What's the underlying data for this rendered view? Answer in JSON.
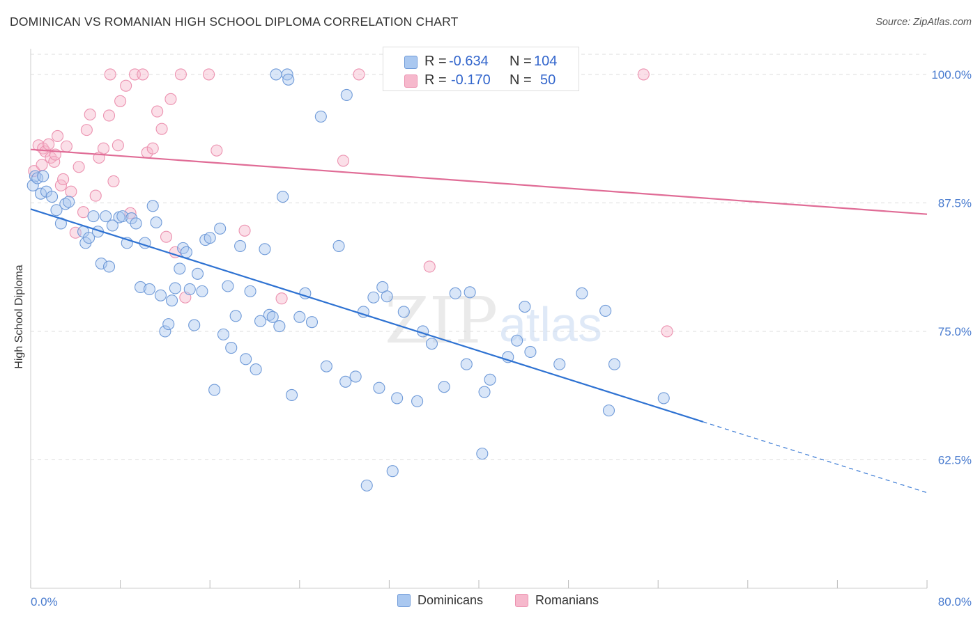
{
  "title": "DOMINICAN VS ROMANIAN HIGH SCHOOL DIPLOMA CORRELATION CHART",
  "source": "Source: ZipAtlas.com",
  "watermark": {
    "part1": "ZIP",
    "part2": "atlas"
  },
  "legend_top": {
    "rows": [
      {
        "r_label": "R = ",
        "r_value": "-0.634",
        "n_label": "N = ",
        "n_value": "104"
      },
      {
        "r_label": "R = ",
        "r_value": "-0.170",
        "n_label": "N = ",
        "n_value": "50"
      }
    ]
  },
  "legend_bottom": [
    "Dominicans",
    "Romanians"
  ],
  "colors": {
    "blue_fill": "#aac8f0",
    "blue_stroke": "#6f9ad8",
    "blue_line": "#2e72d2",
    "pink_fill": "#f6b8cc",
    "pink_stroke": "#ec92b0",
    "pink_line": "#e06c96",
    "tick_text": "#4a7ccf",
    "grid": "#dddddd"
  },
  "chart_data": {
    "type": "scatter",
    "title": "DOMINICAN VS ROMANIAN HIGH SCHOOL DIPLOMA CORRELATION CHART",
    "xlabel": "",
    "ylabel": "High School Diploma",
    "xlim": [
      0,
      80
    ],
    "ylim": [
      50,
      102.5
    ],
    "x_tick_labels": [
      "0.0%",
      "80.0%"
    ],
    "y_ticks": [
      62.5,
      75.0,
      87.5,
      100.0
    ],
    "y_tick_labels": [
      "62.5%",
      "75.0%",
      "87.5%",
      "100.0%"
    ],
    "grid": "horizontal dashed",
    "legend_position": "top-center",
    "series": [
      {
        "name": "Dominicans",
        "r": -0.634,
        "n": 104,
        "trend": {
          "x0": 0.0,
          "y0": 86.9,
          "x1": 80.0,
          "y1": 59.3,
          "solid_until_x": 60.0
        },
        "points": [
          [
            0.2,
            89.2
          ],
          [
            0.4,
            90.1
          ],
          [
            0.6,
            89.9
          ],
          [
            0.9,
            88.4
          ],
          [
            1.1,
            90.1
          ],
          [
            1.4,
            88.6
          ],
          [
            1.9,
            88.1
          ],
          [
            2.3,
            86.8
          ],
          [
            2.7,
            85.5
          ],
          [
            3.1,
            87.4
          ],
          [
            3.4,
            87.6
          ],
          [
            4.7,
            84.7
          ],
          [
            4.9,
            83.6
          ],
          [
            5.2,
            84.1
          ],
          [
            5.6,
            86.2
          ],
          [
            6.0,
            84.7
          ],
          [
            6.3,
            81.6
          ],
          [
            6.7,
            86.2
          ],
          [
            7.0,
            81.3
          ],
          [
            7.3,
            85.3
          ],
          [
            7.9,
            86.1
          ],
          [
            8.2,
            86.2
          ],
          [
            8.6,
            83.6
          ],
          [
            9.0,
            86.0
          ],
          [
            9.4,
            85.5
          ],
          [
            9.8,
            79.3
          ],
          [
            10.2,
            83.6
          ],
          [
            10.6,
            79.1
          ],
          [
            10.9,
            87.2
          ],
          [
            11.2,
            85.6
          ],
          [
            11.6,
            78.5
          ],
          [
            12.0,
            75.0
          ],
          [
            12.3,
            75.7
          ],
          [
            12.6,
            78.0
          ],
          [
            12.9,
            79.2
          ],
          [
            13.3,
            81.1
          ],
          [
            13.6,
            83.1
          ],
          [
            13.9,
            82.7
          ],
          [
            14.2,
            79.1
          ],
          [
            14.6,
            75.6
          ],
          [
            14.9,
            80.6
          ],
          [
            15.3,
            78.9
          ],
          [
            15.6,
            83.9
          ],
          [
            16.0,
            84.1
          ],
          [
            16.4,
            69.3
          ],
          [
            16.9,
            85.0
          ],
          [
            17.2,
            74.7
          ],
          [
            17.6,
            79.4
          ],
          [
            17.9,
            73.4
          ],
          [
            18.3,
            76.5
          ],
          [
            18.7,
            83.3
          ],
          [
            19.2,
            72.3
          ],
          [
            19.6,
            78.9
          ],
          [
            20.1,
            71.3
          ],
          [
            20.5,
            76.0
          ],
          [
            20.9,
            83.0
          ],
          [
            21.3,
            76.6
          ],
          [
            21.6,
            76.4
          ],
          [
            21.9,
            100.0
          ],
          [
            22.2,
            75.5
          ],
          [
            22.5,
            88.1
          ],
          [
            22.9,
            100.0
          ],
          [
            23.3,
            68.8
          ],
          [
            24.0,
            76.4
          ],
          [
            24.5,
            78.7
          ],
          [
            25.1,
            75.9
          ],
          [
            25.9,
            95.9
          ],
          [
            26.4,
            71.6
          ],
          [
            27.5,
            83.3
          ],
          [
            28.1,
            70.1
          ],
          [
            29.0,
            70.6
          ],
          [
            29.7,
            76.9
          ],
          [
            30.6,
            78.3
          ],
          [
            31.1,
            69.5
          ],
          [
            31.4,
            79.3
          ],
          [
            31.8,
            78.4
          ],
          [
            32.3,
            61.4
          ],
          [
            32.7,
            68.5
          ],
          [
            33.3,
            76.9
          ],
          [
            34.5,
            68.2
          ],
          [
            35.0,
            75.0
          ],
          [
            35.8,
            73.8
          ],
          [
            36.9,
            69.6
          ],
          [
            37.9,
            78.7
          ],
          [
            38.9,
            71.8
          ],
          [
            39.2,
            78.8
          ],
          [
            40.3,
            63.1
          ],
          [
            40.5,
            69.1
          ],
          [
            41.0,
            70.3
          ],
          [
            42.6,
            72.5
          ],
          [
            43.4,
            74.1
          ],
          [
            44.1,
            77.4
          ],
          [
            44.6,
            73.0
          ],
          [
            47.2,
            71.8
          ],
          [
            49.2,
            78.7
          ],
          [
            51.3,
            77.0
          ],
          [
            51.6,
            67.3
          ],
          [
            52.1,
            71.8
          ],
          [
            56.5,
            68.5
          ],
          [
            28.2,
            98.0
          ],
          [
            23.0,
            99.5
          ],
          [
            30.0,
            60.0
          ]
        ]
      },
      {
        "name": "Romanians",
        "r": -0.17,
        "n": 50,
        "trend": {
          "x0": 0.0,
          "y0": 92.7,
          "x1": 80.0,
          "y1": 86.4
        },
        "points": [
          [
            0.3,
            90.6
          ],
          [
            0.7,
            93.1
          ],
          [
            1.1,
            92.8
          ],
          [
            1.3,
            92.5
          ],
          [
            1.6,
            93.2
          ],
          [
            1.8,
            91.9
          ],
          [
            2.1,
            91.5
          ],
          [
            2.4,
            94.0
          ],
          [
            2.7,
            89.2
          ],
          [
            2.9,
            89.8
          ],
          [
            3.2,
            93.0
          ],
          [
            3.6,
            88.6
          ],
          [
            4.0,
            84.6
          ],
          [
            4.3,
            91.0
          ],
          [
            4.7,
            86.6
          ],
          [
            5.0,
            94.6
          ],
          [
            5.3,
            96.1
          ],
          [
            5.8,
            88.2
          ],
          [
            6.1,
            91.9
          ],
          [
            6.5,
            92.8
          ],
          [
            7.0,
            96.0
          ],
          [
            7.4,
            89.6
          ],
          [
            7.8,
            93.1
          ],
          [
            8.0,
            97.4
          ],
          [
            8.5,
            98.9
          ],
          [
            8.9,
            86.5
          ],
          [
            9.3,
            100.0
          ],
          [
            10.0,
            100.0
          ],
          [
            10.4,
            92.4
          ],
          [
            10.9,
            92.8
          ],
          [
            11.3,
            96.4
          ],
          [
            11.7,
            94.7
          ],
          [
            12.1,
            84.2
          ],
          [
            12.5,
            97.6
          ],
          [
            12.9,
            82.7
          ],
          [
            13.4,
            100.0
          ],
          [
            13.8,
            78.3
          ],
          [
            15.9,
            100.0
          ],
          [
            16.6,
            92.6
          ],
          [
            19.1,
            84.8
          ],
          [
            22.4,
            78.2
          ],
          [
            27.9,
            91.6
          ],
          [
            29.3,
            100.0
          ],
          [
            32.3,
            100.0
          ],
          [
            35.6,
            81.3
          ],
          [
            54.7,
            100.0
          ],
          [
            56.8,
            75.0
          ],
          [
            7.1,
            100.0
          ],
          [
            2.2,
            92.2
          ],
          [
            1.0,
            91.2
          ]
        ]
      }
    ]
  }
}
